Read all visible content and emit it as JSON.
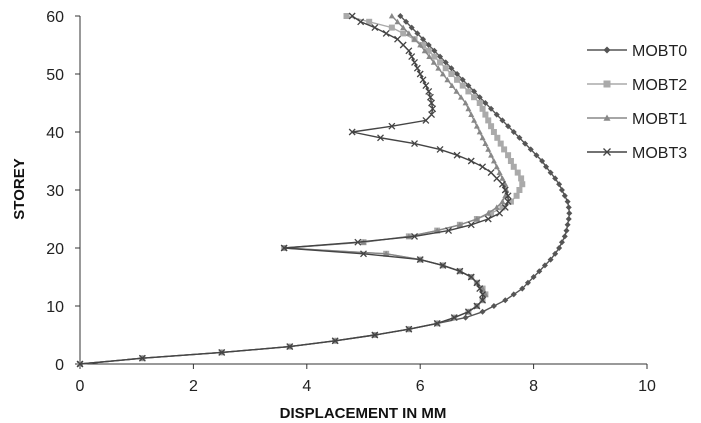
{
  "chart_data": {
    "type": "line",
    "xlabel": "DISPLACEMENT IN MM",
    "ylabel": "STOREY",
    "xlim": [
      0,
      10
    ],
    "ylim": [
      0,
      60
    ],
    "xticks": [
      "0",
      "2",
      "4",
      "6",
      "8",
      "10"
    ],
    "yticks": [
      "0",
      "10",
      "20",
      "30",
      "40",
      "50",
      "60"
    ],
    "grid": false,
    "legend_position": "right",
    "series": [
      {
        "name": "MOBT0",
        "color": "#555555",
        "marker": "diamond",
        "points": [
          [
            0,
            0
          ],
          [
            1.1,
            1
          ],
          [
            2.5,
            2
          ],
          [
            3.7,
            3
          ],
          [
            4.5,
            4
          ],
          [
            5.2,
            5
          ],
          [
            5.8,
            6
          ],
          [
            6.3,
            7
          ],
          [
            6.8,
            8
          ],
          [
            7.1,
            9
          ],
          [
            7.3,
            10
          ],
          [
            7.5,
            11
          ],
          [
            7.65,
            12
          ],
          [
            7.8,
            13
          ],
          [
            7.9,
            14
          ],
          [
            8.0,
            15
          ],
          [
            8.1,
            16
          ],
          [
            8.2,
            17
          ],
          [
            8.3,
            18
          ],
          [
            8.38,
            19
          ],
          [
            8.45,
            20
          ],
          [
            8.5,
            21
          ],
          [
            8.55,
            22
          ],
          [
            8.58,
            23
          ],
          [
            8.6,
            24
          ],
          [
            8.62,
            25
          ],
          [
            8.63,
            26
          ],
          [
            8.62,
            27
          ],
          [
            8.6,
            28
          ],
          [
            8.55,
            29
          ],
          [
            8.5,
            30
          ],
          [
            8.45,
            31
          ],
          [
            8.38,
            32
          ],
          [
            8.3,
            33
          ],
          [
            8.22,
            34
          ],
          [
            8.15,
            35
          ],
          [
            8.05,
            36
          ],
          [
            7.95,
            37
          ],
          [
            7.85,
            38
          ],
          [
            7.75,
            39
          ],
          [
            7.65,
            40
          ],
          [
            7.55,
            41
          ],
          [
            7.45,
            42
          ],
          [
            7.35,
            43
          ],
          [
            7.25,
            44
          ],
          [
            7.15,
            45
          ],
          [
            7.05,
            46
          ],
          [
            6.95,
            47
          ],
          [
            6.85,
            48
          ],
          [
            6.75,
            49
          ],
          [
            6.65,
            50
          ],
          [
            6.55,
            51
          ],
          [
            6.45,
            52
          ],
          [
            6.35,
            53
          ],
          [
            6.25,
            54
          ],
          [
            6.15,
            55
          ],
          [
            6.05,
            56
          ],
          [
            5.95,
            57
          ],
          [
            5.85,
            58
          ],
          [
            5.75,
            59
          ],
          [
            5.65,
            60
          ]
        ]
      },
      {
        "name": "MOBT2",
        "color": "#aaaaaa",
        "marker": "square",
        "points": [
          [
            0,
            0
          ],
          [
            1.1,
            1
          ],
          [
            2.5,
            2
          ],
          [
            3.7,
            3
          ],
          [
            4.5,
            4
          ],
          [
            5.2,
            5
          ],
          [
            5.8,
            6
          ],
          [
            6.3,
            7
          ],
          [
            6.6,
            8
          ],
          [
            6.85,
            9
          ],
          [
            7.0,
            10
          ],
          [
            7.1,
            11
          ],
          [
            7.15,
            12
          ],
          [
            7.1,
            13
          ],
          [
            7.0,
            14
          ],
          [
            6.9,
            15
          ],
          [
            6.7,
            16
          ],
          [
            6.4,
            17
          ],
          [
            6.0,
            18
          ],
          [
            5.4,
            19
          ],
          [
            3.6,
            20
          ],
          [
            5.0,
            21
          ],
          [
            5.8,
            22
          ],
          [
            6.3,
            23
          ],
          [
            6.7,
            24
          ],
          [
            7.0,
            25
          ],
          [
            7.25,
            26
          ],
          [
            7.45,
            27
          ],
          [
            7.6,
            28
          ],
          [
            7.7,
            29
          ],
          [
            7.75,
            30
          ],
          [
            7.8,
            31
          ],
          [
            7.78,
            32
          ],
          [
            7.72,
            33
          ],
          [
            7.65,
            34
          ],
          [
            7.6,
            35
          ],
          [
            7.55,
            36
          ],
          [
            7.48,
            37
          ],
          [
            7.42,
            38
          ],
          [
            7.36,
            39
          ],
          [
            7.3,
            40
          ],
          [
            7.25,
            41
          ],
          [
            7.2,
            42
          ],
          [
            7.15,
            43
          ],
          [
            7.1,
            44
          ],
          [
            7.05,
            45
          ],
          [
            6.95,
            46
          ],
          [
            6.85,
            47
          ],
          [
            6.75,
            48
          ],
          [
            6.65,
            49
          ],
          [
            6.55,
            50
          ],
          [
            6.45,
            51
          ],
          [
            6.35,
            52
          ],
          [
            6.25,
            53
          ],
          [
            6.15,
            54
          ],
          [
            6.05,
            55
          ],
          [
            5.9,
            56
          ],
          [
            5.7,
            57
          ],
          [
            5.5,
            58
          ],
          [
            5.1,
            59
          ],
          [
            4.7,
            60
          ]
        ]
      },
      {
        "name": "MOBT1",
        "color": "#888888",
        "marker": "triangle",
        "points": [
          [
            0,
            0
          ],
          [
            1.1,
            1
          ],
          [
            2.5,
            2
          ],
          [
            3.7,
            3
          ],
          [
            4.5,
            4
          ],
          [
            5.2,
            5
          ],
          [
            5.8,
            6
          ],
          [
            6.3,
            7
          ],
          [
            6.6,
            8
          ],
          [
            6.85,
            9
          ],
          [
            7.0,
            10
          ],
          [
            7.1,
            11
          ],
          [
            7.15,
            12
          ],
          [
            7.1,
            13
          ],
          [
            7.0,
            14
          ],
          [
            6.9,
            15
          ],
          [
            6.7,
            16
          ],
          [
            6.4,
            17
          ],
          [
            6.0,
            18
          ],
          [
            5.4,
            19
          ],
          [
            3.6,
            20
          ],
          [
            5.0,
            21
          ],
          [
            5.8,
            22
          ],
          [
            6.3,
            23
          ],
          [
            6.7,
            24
          ],
          [
            7.0,
            25
          ],
          [
            7.2,
            26
          ],
          [
            7.35,
            27
          ],
          [
            7.45,
            28
          ],
          [
            7.5,
            29
          ],
          [
            7.52,
            30
          ],
          [
            7.5,
            31
          ],
          [
            7.45,
            32
          ],
          [
            7.4,
            33
          ],
          [
            7.35,
            34
          ],
          [
            7.3,
            35
          ],
          [
            7.25,
            36
          ],
          [
            7.2,
            37
          ],
          [
            7.15,
            38
          ],
          [
            7.1,
            39
          ],
          [
            7.05,
            40
          ],
          [
            7.0,
            41
          ],
          [
            6.95,
            42
          ],
          [
            6.9,
            43
          ],
          [
            6.85,
            44
          ],
          [
            6.8,
            45
          ],
          [
            6.72,
            46
          ],
          [
            6.64,
            47
          ],
          [
            6.56,
            48
          ],
          [
            6.48,
            49
          ],
          [
            6.4,
            50
          ],
          [
            6.32,
            51
          ],
          [
            6.24,
            52
          ],
          [
            6.16,
            53
          ],
          [
            6.08,
            54
          ],
          [
            6.0,
            55
          ],
          [
            5.9,
            56
          ],
          [
            5.8,
            57
          ],
          [
            5.7,
            58
          ],
          [
            5.6,
            59
          ],
          [
            5.5,
            60
          ]
        ]
      },
      {
        "name": "MOBT3",
        "color": "#444444",
        "marker": "x",
        "points": [
          [
            0,
            0
          ],
          [
            1.1,
            1
          ],
          [
            2.5,
            2
          ],
          [
            3.7,
            3
          ],
          [
            4.5,
            4
          ],
          [
            5.2,
            5
          ],
          [
            5.8,
            6
          ],
          [
            6.3,
            7
          ],
          [
            6.6,
            8
          ],
          [
            6.85,
            9
          ],
          [
            7.0,
            10
          ],
          [
            7.1,
            11
          ],
          [
            7.1,
            12
          ],
          [
            7.05,
            13
          ],
          [
            7.0,
            14
          ],
          [
            6.9,
            15
          ],
          [
            6.7,
            16
          ],
          [
            6.4,
            17
          ],
          [
            6.0,
            18
          ],
          [
            5.0,
            19
          ],
          [
            3.6,
            20
          ],
          [
            4.9,
            21
          ],
          [
            5.9,
            22
          ],
          [
            6.5,
            23
          ],
          [
            6.9,
            24
          ],
          [
            7.2,
            25
          ],
          [
            7.4,
            26
          ],
          [
            7.5,
            27
          ],
          [
            7.55,
            28
          ],
          [
            7.55,
            29
          ],
          [
            7.5,
            30
          ],
          [
            7.45,
            31
          ],
          [
            7.35,
            32
          ],
          [
            7.25,
            33
          ],
          [
            7.1,
            34
          ],
          [
            6.9,
            35
          ],
          [
            6.65,
            36
          ],
          [
            6.35,
            37
          ],
          [
            5.9,
            38
          ],
          [
            5.3,
            39
          ],
          [
            4.8,
            40
          ],
          [
            5.5,
            41
          ],
          [
            6.1,
            42
          ],
          [
            6.2,
            43
          ],
          [
            6.22,
            44
          ],
          [
            6.2,
            45
          ],
          [
            6.18,
            46
          ],
          [
            6.15,
            47
          ],
          [
            6.1,
            48
          ],
          [
            6.05,
            49
          ],
          [
            6.0,
            50
          ],
          [
            5.95,
            51
          ],
          [
            5.9,
            52
          ],
          [
            5.85,
            53
          ],
          [
            5.8,
            54
          ],
          [
            5.7,
            55
          ],
          [
            5.6,
            56
          ],
          [
            5.4,
            57
          ],
          [
            5.2,
            58
          ],
          [
            4.95,
            59
          ],
          [
            4.8,
            60
          ]
        ]
      }
    ]
  }
}
